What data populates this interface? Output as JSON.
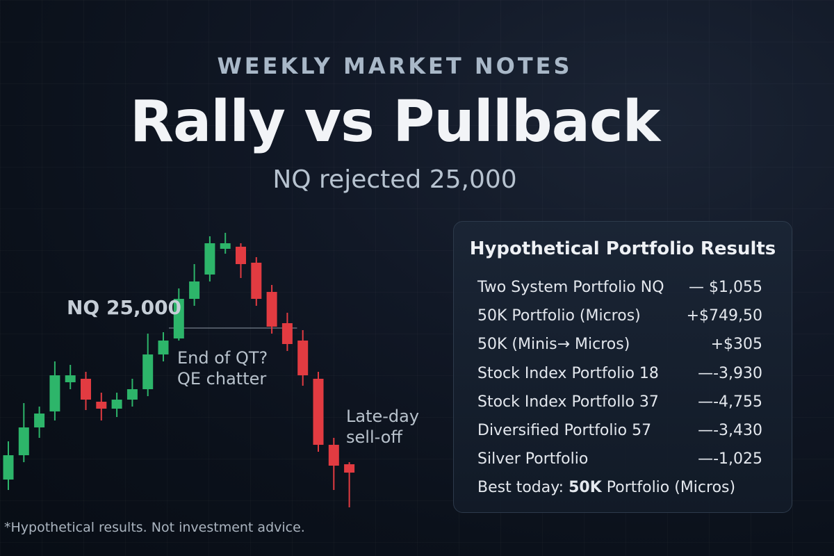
{
  "header": {
    "kicker": "WEEKLY MARKET NOTES",
    "title": "Rally vs Pullback",
    "subtitle": "NQ rejected 25,000"
  },
  "chart_data": {
    "type": "candlestick",
    "colors": {
      "up": "#2db56a",
      "down": "#e23b41",
      "wick_up": "#2db56a",
      "wick_down": "#e23b41"
    },
    "ylim": [
      0,
      460
    ],
    "candles": [
      {
        "o": 70,
        "c": 105,
        "h": 125,
        "l": 55
      },
      {
        "o": 105,
        "c": 145,
        "h": 180,
        "l": 95
      },
      {
        "o": 145,
        "c": 165,
        "h": 175,
        "l": 130
      },
      {
        "o": 168,
        "c": 220,
        "h": 240,
        "l": 155
      },
      {
        "o": 210,
        "c": 220,
        "h": 235,
        "l": 200
      },
      {
        "o": 215,
        "c": 185,
        "h": 225,
        "l": 170
      },
      {
        "o": 182,
        "c": 172,
        "h": 195,
        "l": 155
      },
      {
        "o": 172,
        "c": 185,
        "h": 195,
        "l": 160
      },
      {
        "o": 185,
        "c": 200,
        "h": 215,
        "l": 175
      },
      {
        "o": 200,
        "c": 250,
        "h": 280,
        "l": 190
      },
      {
        "o": 250,
        "c": 270,
        "h": 282,
        "l": 240
      },
      {
        "o": 273,
        "c": 330,
        "h": 345,
        "l": 270
      },
      {
        "o": 330,
        "c": 355,
        "h": 380,
        "l": 320
      },
      {
        "o": 365,
        "c": 410,
        "h": 420,
        "l": 355
      },
      {
        "o": 402,
        "c": 410,
        "h": 425,
        "l": 395
      },
      {
        "o": 405,
        "c": 380,
        "h": 410,
        "l": 360
      },
      {
        "o": 382,
        "c": 330,
        "h": 390,
        "l": 320
      },
      {
        "o": 340,
        "c": 290,
        "h": 350,
        "l": 280
      },
      {
        "o": 295,
        "c": 265,
        "h": 310,
        "l": 255
      },
      {
        "o": 270,
        "c": 220,
        "h": 285,
        "l": 205
      },
      {
        "o": 215,
        "c": 120,
        "h": 225,
        "l": 110
      },
      {
        "o": 120,
        "c": 90,
        "h": 130,
        "l": 55
      },
      {
        "o": 92,
        "c": 80,
        "h": 95,
        "l": 30
      }
    ],
    "level_line": {
      "value": 288,
      "from_index": 10,
      "to_index": 18
    },
    "annotations": {
      "level_label": "NQ 25,000",
      "qt_line1": "End of QT?",
      "qt_line2": "QE chatter",
      "selloff_line1": "Late-day",
      "selloff_line2": "sell-off"
    }
  },
  "portfolio": {
    "title": "Hypothetical Portfolio Results",
    "rows": [
      {
        "name": "Two System Portfolio NQ",
        "value": "— $1,055"
      },
      {
        "name": "50K Portfolio (Micros)",
        "value": "+$749,50"
      },
      {
        "name": "50K (Minis→ Micros)",
        "value": "+$305"
      },
      {
        "name": "Stock Index Portfolio 18",
        "value": "—-3,930"
      },
      {
        "name": "Stock Index Portfollo 37",
        "value": "—-4,755"
      },
      {
        "name": "Diversified Portfolio 57",
        "value": "—-3,430"
      },
      {
        "name": "Silver Portfolio",
        "value": "—-1,025"
      }
    ],
    "best_prefix": "Best today:",
    "best_bold": "50K",
    "best_rest": "Portfolio  (Micros)"
  },
  "footer": {
    "disclaimer": "*Hypothetical results. Not investment advice."
  }
}
